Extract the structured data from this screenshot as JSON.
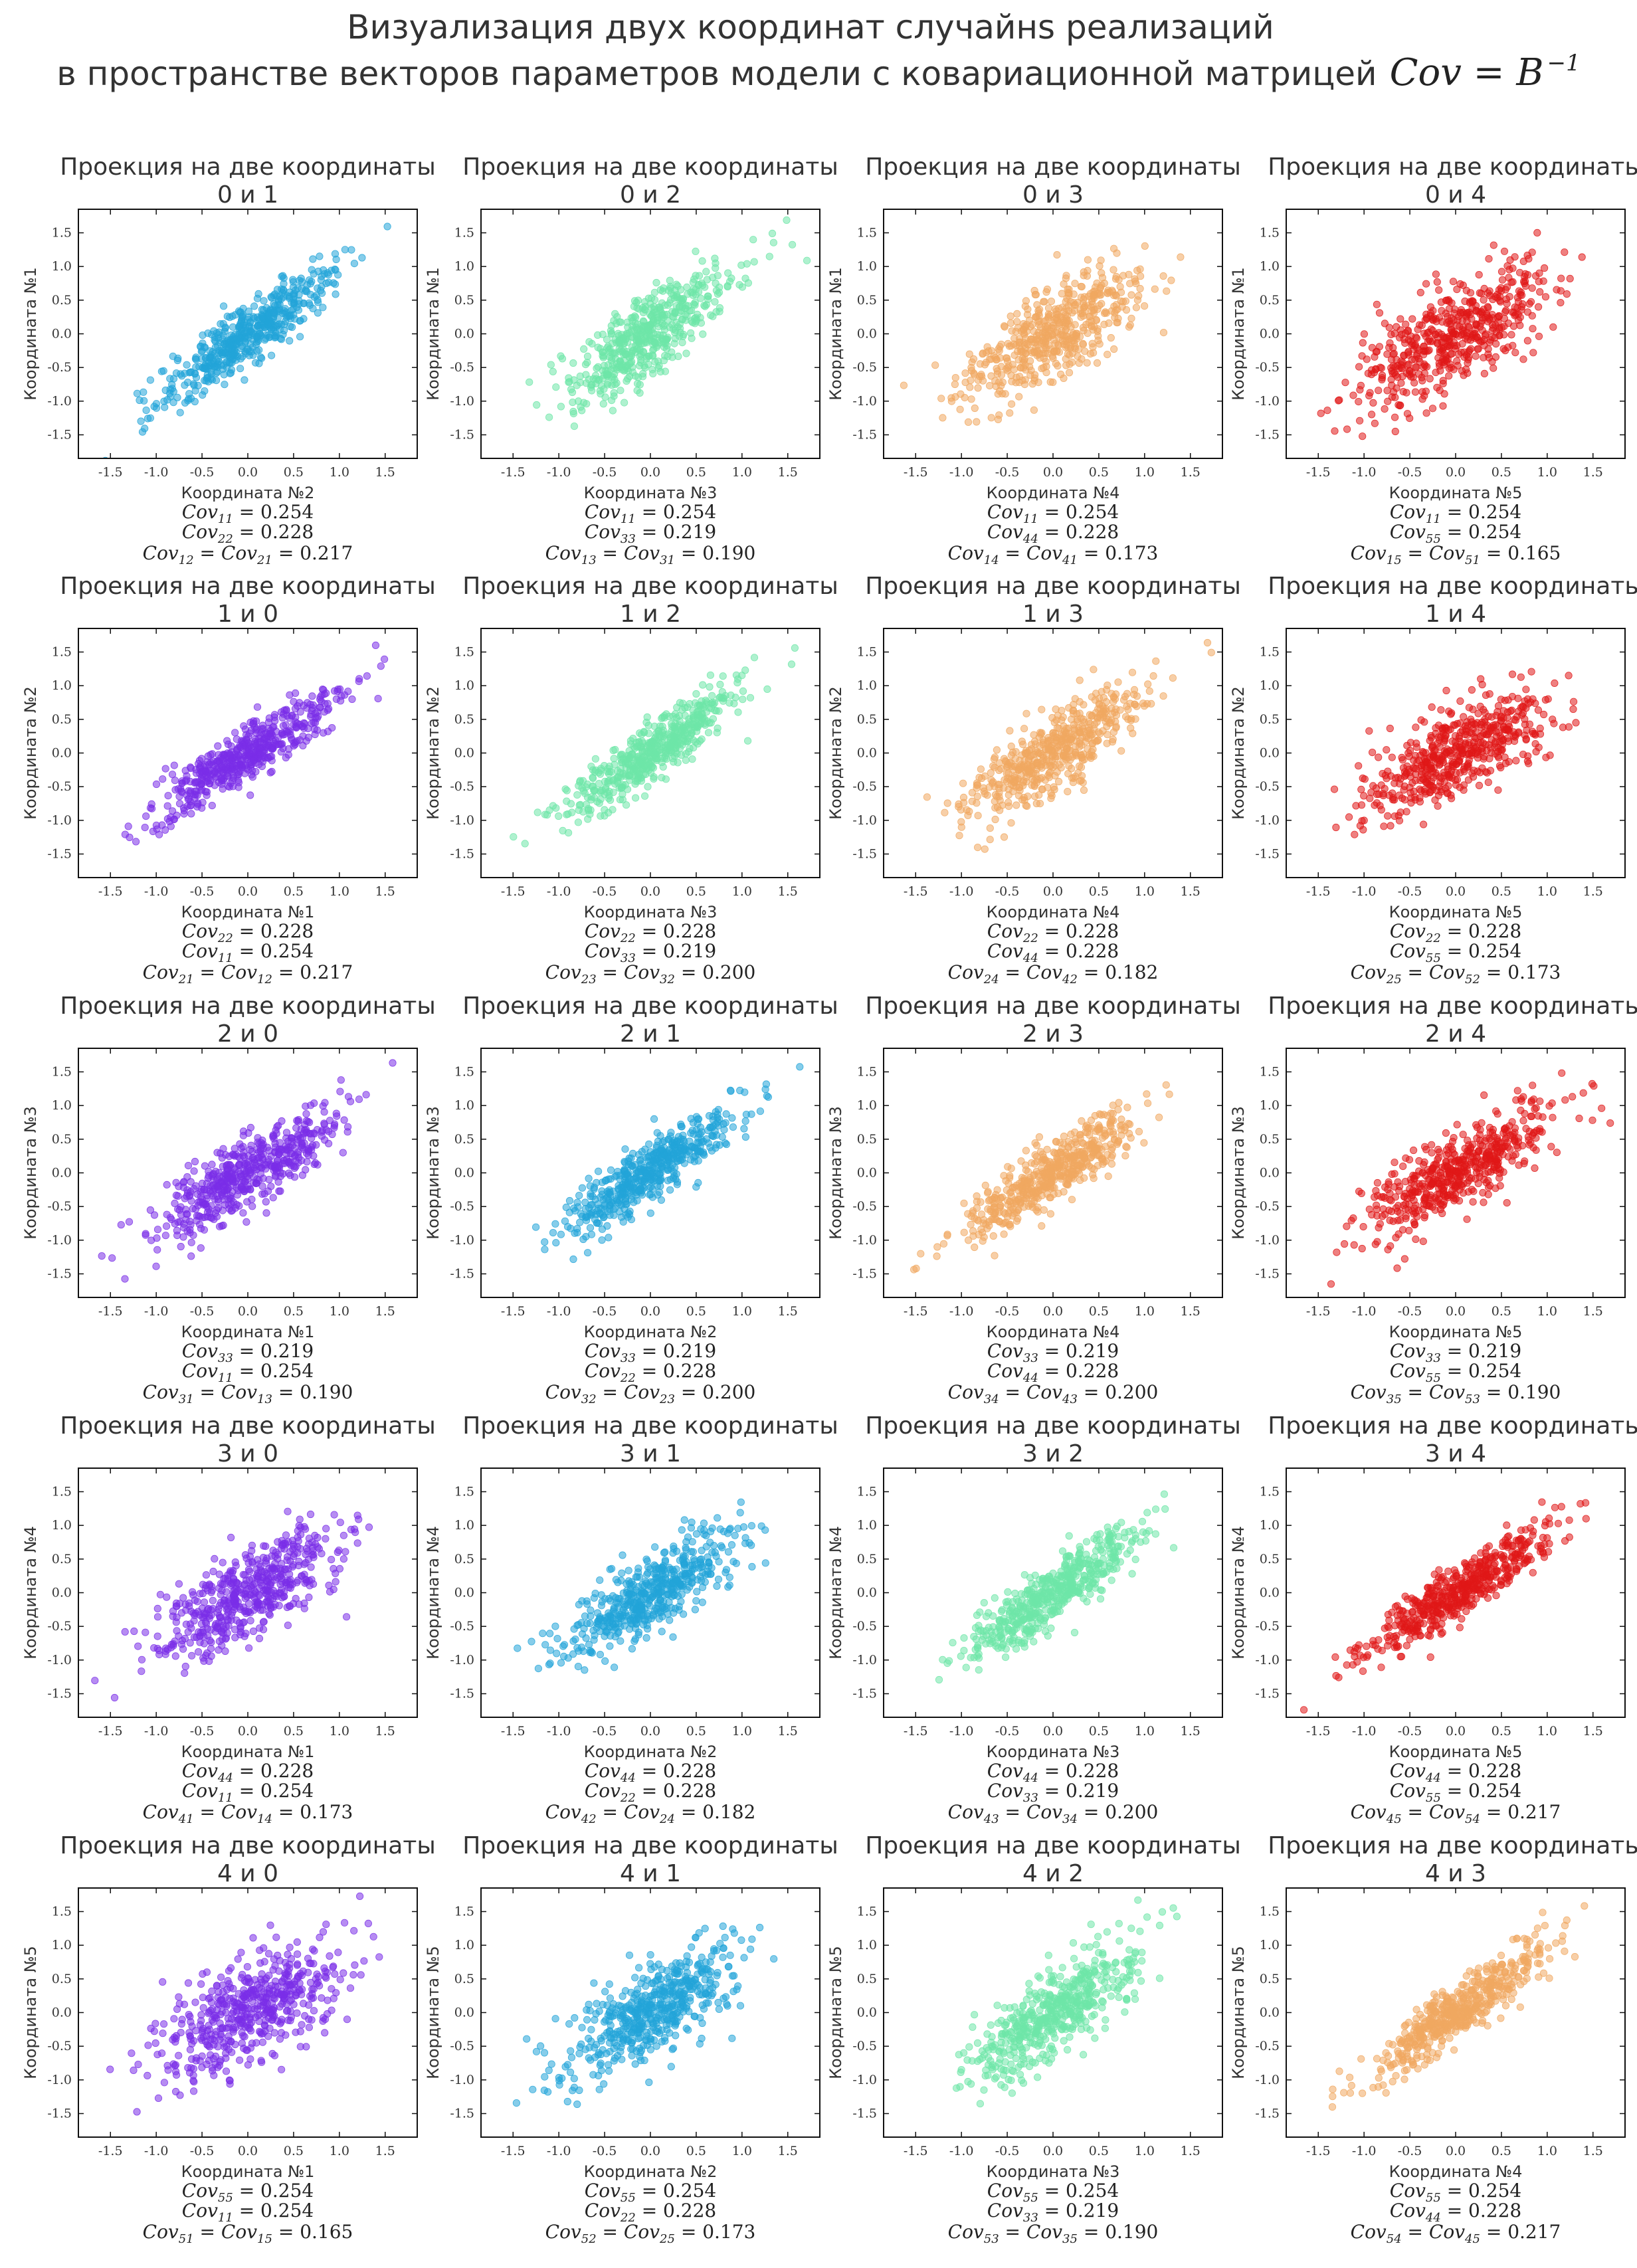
{
  "figure": {
    "title_line1": "Визуализация двух координат случайнs реализаций",
    "title_line2": "в пространстве векторов параметров модели с ковариационной матрицей",
    "title_math": "Cov = B",
    "title_math_sup": "−1"
  },
  "palette": {
    "violet": "#7a2ee8",
    "blue": "#22a4d8",
    "green": "#6ee6a8",
    "orange": "#f0a860",
    "red": "#e01818"
  },
  "chart_data": [
    {
      "type": "scatter",
      "title": "Проекция на две координаты",
      "pair": "0 и 1",
      "i": 0,
      "j": 1,
      "xlabel": "Координата №2",
      "ylabel": "Координата №1",
      "color": "blue",
      "xlim": [
        -1.85,
        1.85
      ],
      "ylim": [
        -1.85,
        1.85
      ],
      "cov_diag_a": {
        "label": "Cov",
        "sub": "11",
        "value": "0.254"
      },
      "cov_diag_b": {
        "label": "Cov",
        "sub": "22",
        "value": "0.228"
      },
      "cov_cross": {
        "sub1": "12",
        "sub2": "21",
        "value": "0.217"
      },
      "corr": 0.9
    },
    {
      "type": "scatter",
      "title": "Проекция на две координаты",
      "pair": "0 и 2",
      "i": 0,
      "j": 2,
      "xlabel": "Координата №3",
      "ylabel": "Координата №1",
      "color": "green",
      "xlim": [
        -1.85,
        1.85
      ],
      "ylim": [
        -1.85,
        1.85
      ],
      "cov_diag_a": {
        "label": "Cov",
        "sub": "11",
        "value": "0.254"
      },
      "cov_diag_b": {
        "label": "Cov",
        "sub": "33",
        "value": "0.219"
      },
      "cov_cross": {
        "sub1": "13",
        "sub2": "31",
        "value": "0.190"
      },
      "corr": 0.8
    },
    {
      "type": "scatter",
      "title": "Проекция на две координаты",
      "pair": "0 и 3",
      "i": 0,
      "j": 3,
      "xlabel": "Координата №4",
      "ylabel": "Координата №1",
      "color": "orange",
      "xlim": [
        -1.85,
        1.85
      ],
      "ylim": [
        -1.85,
        1.85
      ],
      "cov_diag_a": {
        "label": "Cov",
        "sub": "11",
        "value": "0.254"
      },
      "cov_diag_b": {
        "label": "Cov",
        "sub": "44",
        "value": "0.228"
      },
      "cov_cross": {
        "sub1": "14",
        "sub2": "41",
        "value": "0.173"
      },
      "corr": 0.72
    },
    {
      "type": "scatter",
      "title": "Проекция на две координаты",
      "pair": "0 и 4",
      "i": 0,
      "j": 4,
      "xlabel": "Координата №5",
      "ylabel": "Координата №1",
      "color": "red",
      "xlim": [
        -1.85,
        1.85
      ],
      "ylim": [
        -1.85,
        1.85
      ],
      "cov_diag_a": {
        "label": "Cov",
        "sub": "11",
        "value": "0.254"
      },
      "cov_diag_b": {
        "label": "Cov",
        "sub": "55",
        "value": "0.254"
      },
      "cov_cross": {
        "sub1": "15",
        "sub2": "51",
        "value": "0.165"
      },
      "corr": 0.65
    },
    {
      "type": "scatter",
      "title": "Проекция на две координаты",
      "pair": "1 и 0",
      "i": 1,
      "j": 0,
      "xlabel": "Координата №1",
      "ylabel": "Координата №2",
      "color": "violet",
      "xlim": [
        -1.85,
        1.85
      ],
      "ylim": [
        -1.85,
        1.85
      ],
      "cov_diag_a": {
        "label": "Cov",
        "sub": "22",
        "value": "0.228"
      },
      "cov_diag_b": {
        "label": "Cov",
        "sub": "11",
        "value": "0.254"
      },
      "cov_cross": {
        "sub1": "21",
        "sub2": "12",
        "value": "0.217"
      },
      "corr": 0.9
    },
    {
      "type": "scatter",
      "title": "Проекция на две координаты",
      "pair": "1 и 2",
      "i": 1,
      "j": 2,
      "xlabel": "Координата №3",
      "ylabel": "Координата №2",
      "color": "green",
      "xlim": [
        -1.85,
        1.85
      ],
      "ylim": [
        -1.85,
        1.85
      ],
      "cov_diag_a": {
        "label": "Cov",
        "sub": "22",
        "value": "0.228"
      },
      "cov_diag_b": {
        "label": "Cov",
        "sub": "33",
        "value": "0.219"
      },
      "cov_cross": {
        "sub1": "23",
        "sub2": "32",
        "value": "0.200"
      },
      "corr": 0.89
    },
    {
      "type": "scatter",
      "title": "Проекция на две координаты",
      "pair": "1 и 3",
      "i": 1,
      "j": 3,
      "xlabel": "Координата №4",
      "ylabel": "Координата №2",
      "color": "orange",
      "xlim": [
        -1.85,
        1.85
      ],
      "ylim": [
        -1.85,
        1.85
      ],
      "cov_diag_a": {
        "label": "Cov",
        "sub": "22",
        "value": "0.228"
      },
      "cov_diag_b": {
        "label": "Cov",
        "sub": "44",
        "value": "0.228"
      },
      "cov_cross": {
        "sub1": "24",
        "sub2": "42",
        "value": "0.182"
      },
      "corr": 0.8
    },
    {
      "type": "scatter",
      "title": "Проекция на две координаты",
      "pair": "1 и 4",
      "i": 1,
      "j": 4,
      "xlabel": "Координата №5",
      "ylabel": "Координата №2",
      "color": "red",
      "xlim": [
        -1.85,
        1.85
      ],
      "ylim": [
        -1.85,
        1.85
      ],
      "cov_diag_a": {
        "label": "Cov",
        "sub": "22",
        "value": "0.228"
      },
      "cov_diag_b": {
        "label": "Cov",
        "sub": "55",
        "value": "0.254"
      },
      "cov_cross": {
        "sub1": "25",
        "sub2": "52",
        "value": "0.173"
      },
      "corr": 0.72
    },
    {
      "type": "scatter",
      "title": "Проекция на две координаты",
      "pair": "2 и 0",
      "i": 2,
      "j": 0,
      "xlabel": "Координата №1",
      "ylabel": "Координата №3",
      "color": "violet",
      "xlim": [
        -1.85,
        1.85
      ],
      "ylim": [
        -1.85,
        1.85
      ],
      "cov_diag_a": {
        "label": "Cov",
        "sub": "33",
        "value": "0.219"
      },
      "cov_diag_b": {
        "label": "Cov",
        "sub": "11",
        "value": "0.254"
      },
      "cov_cross": {
        "sub1": "31",
        "sub2": "13",
        "value": "0.190"
      },
      "corr": 0.8
    },
    {
      "type": "scatter",
      "title": "Проекция на две координаты",
      "pair": "2 и 1",
      "i": 2,
      "j": 1,
      "xlabel": "Координата №2",
      "ylabel": "Координата №3",
      "color": "blue",
      "xlim": [
        -1.85,
        1.85
      ],
      "ylim": [
        -1.85,
        1.85
      ],
      "cov_diag_a": {
        "label": "Cov",
        "sub": "33",
        "value": "0.219"
      },
      "cov_diag_b": {
        "label": "Cov",
        "sub": "22",
        "value": "0.228"
      },
      "cov_cross": {
        "sub1": "32",
        "sub2": "23",
        "value": "0.200"
      },
      "corr": 0.89
    },
    {
      "type": "scatter",
      "title": "Проекция на две координаты",
      "pair": "2 и 3",
      "i": 2,
      "j": 3,
      "xlabel": "Координата №4",
      "ylabel": "Координата №3",
      "color": "orange",
      "xlim": [
        -1.85,
        1.85
      ],
      "ylim": [
        -1.85,
        1.85
      ],
      "cov_diag_a": {
        "label": "Cov",
        "sub": "33",
        "value": "0.219"
      },
      "cov_diag_b": {
        "label": "Cov",
        "sub": "44",
        "value": "0.228"
      },
      "cov_cross": {
        "sub1": "34",
        "sub2": "43",
        "value": "0.200"
      },
      "corr": 0.89
    },
    {
      "type": "scatter",
      "title": "Проекция на две координаты",
      "pair": "2 и 4",
      "i": 2,
      "j": 4,
      "xlabel": "Координата №5",
      "ylabel": "Координата №3",
      "color": "red",
      "xlim": [
        -1.85,
        1.85
      ],
      "ylim": [
        -1.85,
        1.85
      ],
      "cov_diag_a": {
        "label": "Cov",
        "sub": "33",
        "value": "0.219"
      },
      "cov_diag_b": {
        "label": "Cov",
        "sub": "55",
        "value": "0.254"
      },
      "cov_cross": {
        "sub1": "35",
        "sub2": "53",
        "value": "0.190"
      },
      "corr": 0.8
    },
    {
      "type": "scatter",
      "title": "Проекция на две координаты",
      "pair": "3 и 0",
      "i": 3,
      "j": 0,
      "xlabel": "Координата №1",
      "ylabel": "Координата №4",
      "color": "violet",
      "xlim": [
        -1.85,
        1.85
      ],
      "ylim": [
        -1.85,
        1.85
      ],
      "cov_diag_a": {
        "label": "Cov",
        "sub": "44",
        "value": "0.228"
      },
      "cov_diag_b": {
        "label": "Cov",
        "sub": "11",
        "value": "0.254"
      },
      "cov_cross": {
        "sub1": "41",
        "sub2": "14",
        "value": "0.173"
      },
      "corr": 0.72
    },
    {
      "type": "scatter",
      "title": "Проекция на две координаты",
      "pair": "3 и 1",
      "i": 3,
      "j": 1,
      "xlabel": "Координата №2",
      "ylabel": "Координата №4",
      "color": "blue",
      "xlim": [
        -1.85,
        1.85
      ],
      "ylim": [
        -1.85,
        1.85
      ],
      "cov_diag_a": {
        "label": "Cov",
        "sub": "44",
        "value": "0.228"
      },
      "cov_diag_b": {
        "label": "Cov",
        "sub": "22",
        "value": "0.228"
      },
      "cov_cross": {
        "sub1": "42",
        "sub2": "24",
        "value": "0.182"
      },
      "corr": 0.8
    },
    {
      "type": "scatter",
      "title": "Проекция на две координаты",
      "pair": "3 и 2",
      "i": 3,
      "j": 2,
      "xlabel": "Координата №3",
      "ylabel": "Координата №4",
      "color": "green",
      "xlim": [
        -1.85,
        1.85
      ],
      "ylim": [
        -1.85,
        1.85
      ],
      "cov_diag_a": {
        "label": "Cov",
        "sub": "44",
        "value": "0.228"
      },
      "cov_diag_b": {
        "label": "Cov",
        "sub": "33",
        "value": "0.219"
      },
      "cov_cross": {
        "sub1": "43",
        "sub2": "34",
        "value": "0.200"
      },
      "corr": 0.89
    },
    {
      "type": "scatter",
      "title": "Проекция на две координаты",
      "pair": "3 и 4",
      "i": 3,
      "j": 4,
      "xlabel": "Координата №5",
      "ylabel": "Координата №4",
      "color": "red",
      "xlim": [
        -1.85,
        1.85
      ],
      "ylim": [
        -1.85,
        1.85
      ],
      "cov_diag_a": {
        "label": "Cov",
        "sub": "44",
        "value": "0.228"
      },
      "cov_diag_b": {
        "label": "Cov",
        "sub": "55",
        "value": "0.254"
      },
      "cov_cross": {
        "sub1": "45",
        "sub2": "54",
        "value": "0.217"
      },
      "corr": 0.9
    },
    {
      "type": "scatter",
      "title": "Проекция на две координаты",
      "pair": "4 и 0",
      "i": 4,
      "j": 0,
      "xlabel": "Координата №1",
      "ylabel": "Координата №5",
      "color": "violet",
      "xlim": [
        -1.85,
        1.85
      ],
      "ylim": [
        -1.85,
        1.85
      ],
      "cov_diag_a": {
        "label": "Cov",
        "sub": "55",
        "value": "0.254"
      },
      "cov_diag_b": {
        "label": "Cov",
        "sub": "11",
        "value": "0.254"
      },
      "cov_cross": {
        "sub1": "51",
        "sub2": "15",
        "value": "0.165"
      },
      "corr": 0.65
    },
    {
      "type": "scatter",
      "title": "Проекция на две координаты",
      "pair": "4 и 1",
      "i": 4,
      "j": 1,
      "xlabel": "Координата №2",
      "ylabel": "Координата №5",
      "color": "blue",
      "xlim": [
        -1.85,
        1.85
      ],
      "ylim": [
        -1.85,
        1.85
      ],
      "cov_diag_a": {
        "label": "Cov",
        "sub": "55",
        "value": "0.254"
      },
      "cov_diag_b": {
        "label": "Cov",
        "sub": "22",
        "value": "0.228"
      },
      "cov_cross": {
        "sub1": "52",
        "sub2": "25",
        "value": "0.173"
      },
      "corr": 0.72
    },
    {
      "type": "scatter",
      "title": "Проекция на две координаты",
      "pair": "4 и 2",
      "i": 4,
      "j": 2,
      "xlabel": "Координата №3",
      "ylabel": "Координата №5",
      "color": "green",
      "xlim": [
        -1.85,
        1.85
      ],
      "ylim": [
        -1.85,
        1.85
      ],
      "cov_diag_a": {
        "label": "Cov",
        "sub": "55",
        "value": "0.254"
      },
      "cov_diag_b": {
        "label": "Cov",
        "sub": "33",
        "value": "0.219"
      },
      "cov_cross": {
        "sub1": "53",
        "sub2": "35",
        "value": "0.190"
      },
      "corr": 0.8
    },
    {
      "type": "scatter",
      "title": "Проекция на две координаты",
      "pair": "4 и 3",
      "i": 4,
      "j": 3,
      "xlabel": "Координата №4",
      "ylabel": "Координата №5",
      "color": "orange",
      "xlim": [
        -1.85,
        1.85
      ],
      "ylim": [
        -1.85,
        1.85
      ],
      "cov_diag_a": {
        "label": "Cov",
        "sub": "55",
        "value": "0.254"
      },
      "cov_diag_b": {
        "label": "Cov",
        "sub": "44",
        "value": "0.228"
      },
      "cov_cross": {
        "sub1": "54",
        "sub2": "45",
        "value": "0.217"
      },
      "corr": 0.9
    }
  ]
}
